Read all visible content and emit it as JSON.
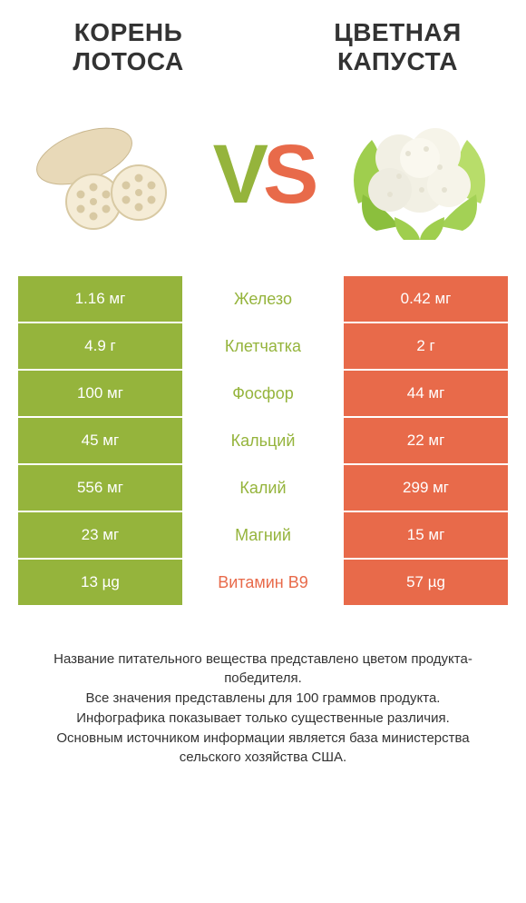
{
  "colors": {
    "green": "#95b43c",
    "orange": "#e86a4a",
    "text": "#333333",
    "white": "#ffffff"
  },
  "left": {
    "title_line1": "Корень",
    "title_line2": "лотоса"
  },
  "right": {
    "title_line1": "Цветная",
    "title_line2": "капуста"
  },
  "vs": {
    "v": "V",
    "s": "S"
  },
  "rows": [
    {
      "left": "1.16 мг",
      "label": "Железо",
      "right": "0.42 мг",
      "winner": "left"
    },
    {
      "left": "4.9 г",
      "label": "Клетчатка",
      "right": "2 г",
      "winner": "left"
    },
    {
      "left": "100 мг",
      "label": "Фосфор",
      "right": "44 мг",
      "winner": "left"
    },
    {
      "left": "45 мг",
      "label": "Кальций",
      "right": "22 мг",
      "winner": "left"
    },
    {
      "left": "556 мг",
      "label": "Калий",
      "right": "299 мг",
      "winner": "left"
    },
    {
      "left": "23 мг",
      "label": "Магний",
      "right": "15 мг",
      "winner": "left"
    },
    {
      "left": "13 µg",
      "label": "Витамин B9",
      "right": "57 µg",
      "winner": "right"
    }
  ],
  "footnotes": [
    "Название питательного вещества представлено цветом продукта-победителя.",
    "Все значения представлены для 100 граммов продукта.",
    "Инфографика показывает только существенные различия.",
    "Основным источником информации является база министерства сельского хозяйства США."
  ]
}
